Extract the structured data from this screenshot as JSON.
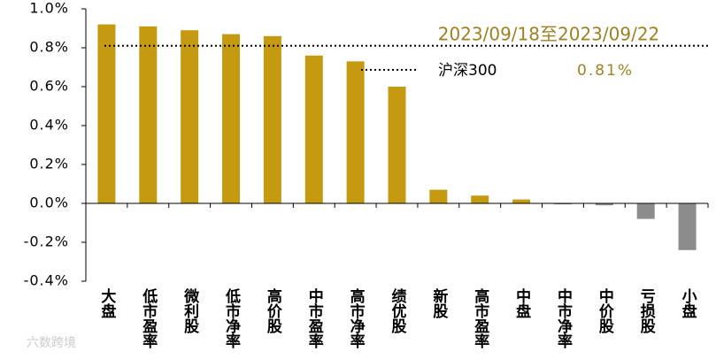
{
  "chart_data": {
    "type": "bar",
    "annotation": "2023/09/18至2023/09/22",
    "categories": [
      "大盘",
      "低市盈率",
      "微利股",
      "低市净率",
      "高价股",
      "中市盈率",
      "高市净率",
      "绩优股",
      "新股",
      "高市盈率",
      "中盘",
      "中市净率",
      "中价股",
      "亏损股",
      "小盘"
    ],
    "values": [
      0.92,
      0.91,
      0.89,
      0.87,
      0.86,
      0.76,
      0.73,
      0.6,
      0.07,
      0.04,
      0.02,
      -0.005,
      -0.01,
      -0.08,
      -0.24
    ],
    "color": "#c59a10",
    "negative_color": "#8c8c8c",
    "reference": {
      "name": "沪深300",
      "value": 0.81,
      "value_label": "0.81%",
      "color": "#a08020"
    },
    "ylim": [
      -0.4,
      1.0
    ],
    "yticks": [
      {
        "value": -0.4,
        "label": "-0.4%"
      },
      {
        "value": -0.2,
        "label": "-0.2%"
      },
      {
        "value": 0,
        "label": "0.0%"
      },
      {
        "value": 0.2,
        "label": "0.2%"
      },
      {
        "value": 0.4,
        "label": "0.4%"
      },
      {
        "value": 0.6,
        "label": "0.6%"
      },
      {
        "value": 0.8,
        "label": "0.8%"
      },
      {
        "value": 1.0,
        "label": "1.0%"
      }
    ],
    "watermark": "六数跨境"
  }
}
